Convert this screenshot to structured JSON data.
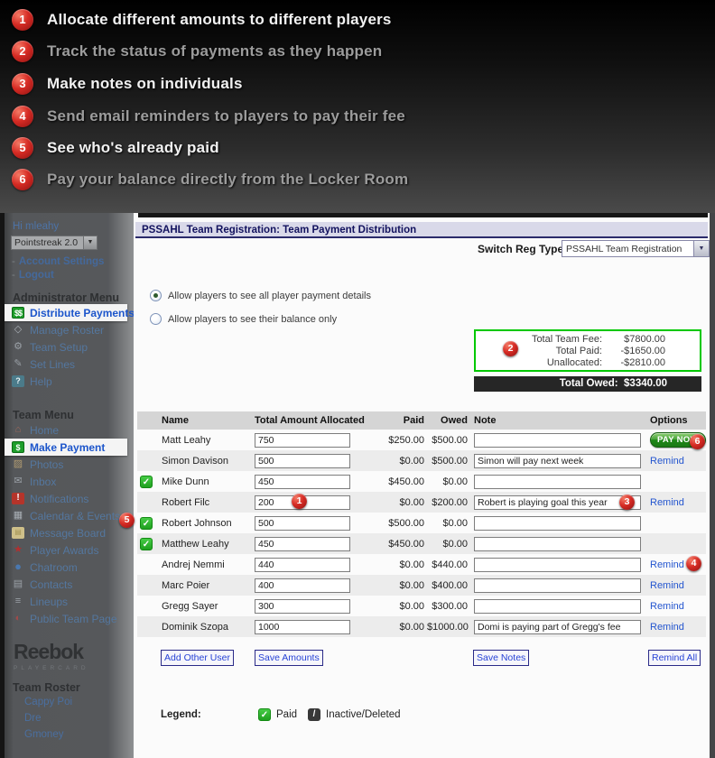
{
  "banner": {
    "features": [
      {
        "num": "1",
        "text": "Allocate different amounts to different players",
        "bright": true
      },
      {
        "num": "2",
        "text": "Track the status of payments as they happen",
        "bright": false
      },
      {
        "num": "3",
        "text": "Make notes on individuals",
        "bright": true
      },
      {
        "num": "4",
        "text": "Send email reminders to players to pay their fee",
        "bright": false
      },
      {
        "num": "5",
        "text": "See who's already paid",
        "bright": true
      },
      {
        "num": "6",
        "text": "Pay your balance directly from the Locker Room",
        "bright": false
      }
    ]
  },
  "sidebar": {
    "greeting": "Hi mleahy",
    "product_select": "Pointstreak 2.0",
    "account_links": [
      "Account Settings",
      "Logout"
    ],
    "admin_header": "Administrator Menu",
    "admin_items": [
      {
        "label": "Distribute Payments",
        "icon": "dollars-icon",
        "active": true
      },
      {
        "label": "Manage Roster",
        "icon": "diamond-icon",
        "active": false
      },
      {
        "label": "Team Setup",
        "icon": "gear-icon",
        "active": false
      },
      {
        "label": "Set Lines",
        "icon": "pencil-icon",
        "active": false
      },
      {
        "label": "Help",
        "icon": "help-icon",
        "active": false
      }
    ],
    "team_header": "Team Menu",
    "team_items": [
      {
        "label": "Home",
        "icon": "home-icon",
        "active": false
      },
      {
        "label": "Make Payment",
        "icon": "dollar-icon",
        "active": true
      },
      {
        "label": "Photos",
        "icon": "photo-icon",
        "active": false
      },
      {
        "label": "Inbox",
        "icon": "envelope-icon",
        "active": false
      },
      {
        "label": "Notifications",
        "icon": "alert-icon",
        "active": false
      },
      {
        "label": "Calendar & Events",
        "icon": "calendar-icon",
        "active": false
      },
      {
        "label": "Message Board",
        "icon": "note-icon",
        "active": false
      },
      {
        "label": "Player Awards",
        "icon": "award-icon",
        "active": false
      },
      {
        "label": "Chatroom",
        "icon": "chat-icon",
        "active": false
      },
      {
        "label": "Contacts",
        "icon": "contacts-icon",
        "active": false
      },
      {
        "label": "Lineups",
        "icon": "people-icon",
        "active": false
      },
      {
        "label": "Public Team Page",
        "icon": "globe-icon",
        "active": false
      }
    ],
    "logo": "Reebok",
    "logo_sub": "PLAYERCARD",
    "roster_header": "Team Roster",
    "roster": [
      "Cappy Poi",
      "Dre",
      "Gmoney"
    ]
  },
  "main": {
    "title": "PSSAHL Team Registration: Team Payment Distribution",
    "switch_label": "Switch Reg Type",
    "switch_value": "PSSAHL Team Registration",
    "radios": [
      {
        "label": "Allow players to see all player payment details",
        "selected": true
      },
      {
        "label": "Allow players to see their balance only",
        "selected": false
      }
    ],
    "summary": {
      "fee_label": "Total Team Fee:",
      "fee_value": "$7800.00",
      "paid_label": "Total Paid:",
      "paid_value": "-$1650.00",
      "unalloc_label": "Unallocated:",
      "unalloc_value": "-$2810.00",
      "owed_label": "Total Owed:",
      "owed_value": "$3340.00"
    },
    "table": {
      "headers": [
        "",
        "Name",
        "Total Amount Allocated",
        "Paid",
        "Owed",
        "Note",
        "Options"
      ],
      "pay_now_label": "PAY NOW",
      "remind_label": "Remind",
      "rows": [
        {
          "check": false,
          "name": "Matt Leahy",
          "amount": "750",
          "paid": "$250.00",
          "owed": "$500.00",
          "note": "",
          "option": "paynow"
        },
        {
          "check": false,
          "name": "Simon Davison",
          "amount": "500",
          "paid": "$0.00",
          "owed": "$500.00",
          "note": "Simon will pay next week",
          "option": "remind"
        },
        {
          "check": true,
          "name": "Mike Dunn",
          "amount": "450",
          "paid": "$450.00",
          "owed": "$0.00",
          "note": "",
          "option": ""
        },
        {
          "check": false,
          "name": "Robert Filc",
          "amount": "200",
          "paid": "$0.00",
          "owed": "$200.00",
          "note": "Robert is playing goal this year",
          "option": "remind"
        },
        {
          "check": true,
          "name": "Robert Johnson",
          "amount": "500",
          "paid": "$500.00",
          "owed": "$0.00",
          "note": "",
          "option": ""
        },
        {
          "check": true,
          "name": "Matthew Leahy",
          "amount": "450",
          "paid": "$450.00",
          "owed": "$0.00",
          "note": "",
          "option": ""
        },
        {
          "check": false,
          "name": "Andrej Nemmi",
          "amount": "440",
          "paid": "$0.00",
          "owed": "$440.00",
          "note": "",
          "option": "remind"
        },
        {
          "check": false,
          "name": "Marc Poier",
          "amount": "400",
          "paid": "$0.00",
          "owed": "$400.00",
          "note": "",
          "option": "remind"
        },
        {
          "check": false,
          "name": "Gregg Sayer",
          "amount": "300",
          "paid": "$0.00",
          "owed": "$300.00",
          "note": "",
          "option": "remind"
        },
        {
          "check": false,
          "name": "Dominik Szopa",
          "amount": "1000",
          "paid": "$0.00",
          "owed": "$1000.00",
          "note": "Domi is paying part of Gregg's fee",
          "option": "remind"
        }
      ]
    },
    "buttons": {
      "add_other": "Add Other User",
      "save_amounts": "Save Amounts",
      "save_notes": "Save Notes",
      "remind_all": "Remind All"
    },
    "legend": {
      "label": "Legend:",
      "paid": "Paid",
      "inactive": "Inactive/Deleted"
    }
  },
  "colors": {
    "callout_red": "#d62b24",
    "paid_green": "#1fa01f",
    "highlight_green_border": "#00c800",
    "link_blue": "#2355cf",
    "title_navy": "#12125e"
  }
}
